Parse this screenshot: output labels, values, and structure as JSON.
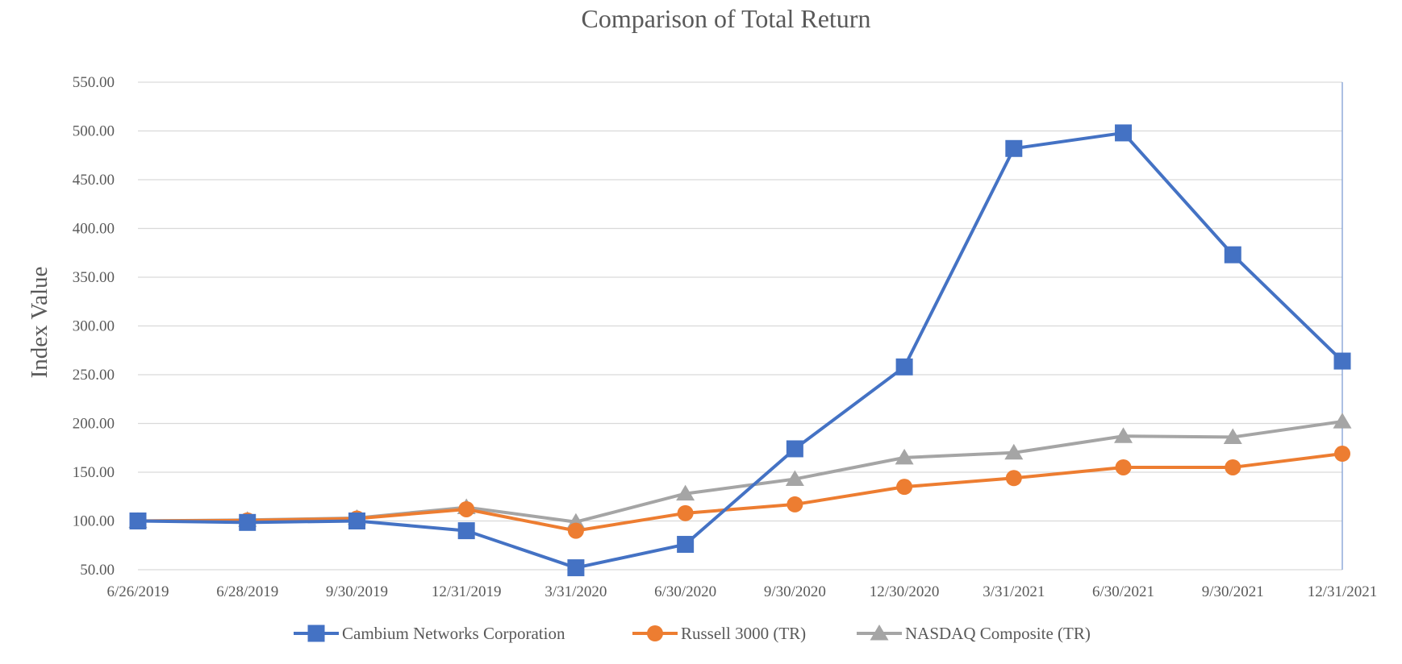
{
  "chart_data": {
    "type": "line",
    "title": "Comparison of Total Return",
    "xlabel": "",
    "ylabel": "Index Value",
    "categories": [
      "6/26/2019",
      "6/28/2019",
      "9/30/2019",
      "12/31/2019",
      "3/31/2020",
      "6/30/2020",
      "9/30/2020",
      "12/30/2020",
      "3/31/2021",
      "6/30/2021",
      "9/30/2021",
      "12/31/2021"
    ],
    "ylim": [
      50,
      550
    ],
    "yticks": [
      "50.00",
      "100.00",
      "150.00",
      "200.00",
      "250.00",
      "300.00",
      "350.00",
      "400.00",
      "450.00",
      "500.00",
      "550.00"
    ],
    "grid": true,
    "legend_position": "bottom",
    "series": [
      {
        "name": "Cambium Networks Corporation",
        "color": "#4472C4",
        "marker": "square",
        "values": [
          100.0,
          98.5,
          100.0,
          90.0,
          52.0,
          76.0,
          174.0,
          258.0,
          482.0,
          498.0,
          373.0,
          264.0
        ]
      },
      {
        "name": "Russell 3000 (TR)",
        "color": "#ED7D31",
        "marker": "circle",
        "values": [
          100.0,
          100.5,
          102.5,
          112.0,
          90.0,
          108.0,
          117.0,
          135.0,
          144.0,
          155.0,
          155.0,
          169.0
        ]
      },
      {
        "name": "NASDAQ Composite (TR)",
        "color": "#A5A5A5",
        "marker": "triangle",
        "values": [
          100.0,
          101.0,
          103.0,
          114.0,
          99.0,
          128.0,
          143.0,
          165.0,
          170.0,
          187.0,
          186.0,
          202.0
        ]
      }
    ]
  }
}
